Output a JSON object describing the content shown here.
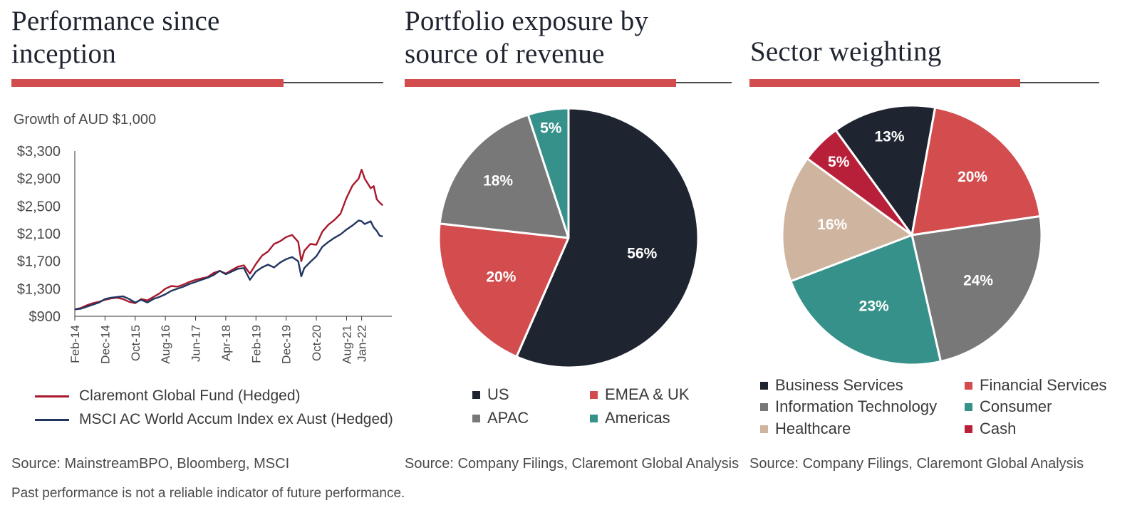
{
  "panels": {
    "performance": {
      "title_line1": "Performance since",
      "title_line2": "inception",
      "subtitle": "Growth of AUD $1,000",
      "source": "Source: MainstreamBPO, Bloomberg, MSCI"
    },
    "exposure": {
      "title_line1": "Portfolio exposure by",
      "title_line2": "source of revenue",
      "source": "Source: Company Filings, Claremont Global Analysis"
    },
    "sector": {
      "title": "Sector weighting",
      "source": "Source: Company Filings, Claremont Global Analysis"
    }
  },
  "disclaimer": "Past performance is not a reliable indicator of future performance.",
  "colors": {
    "accent_red": "#d34d4f",
    "fund_line": "#a8182c",
    "index_line": "#213561",
    "navy": "#1e2531",
    "grey": "#787878",
    "teal": "#36918a",
    "tan": "#cfb5a0",
    "crimson": "#b8203a"
  },
  "chart_data": [
    {
      "type": "line",
      "title": "Growth of AUD $1,000",
      "y_ticks": [
        "$3,300",
        "$2,900",
        "$2,500",
        "$2,100",
        "$1,700",
        "$1,300",
        "$900"
      ],
      "y_tick_values": [
        3300,
        2900,
        2500,
        2100,
        1700,
        1300,
        900
      ],
      "x_ticks": [
        "Feb-14",
        "Dec-14",
        "Oct-15",
        "Aug-16",
        "Jun-17",
        "Apr-18",
        "Feb-19",
        "Dec-19",
        "Oct-20",
        "Aug-21",
        "Jan-22"
      ],
      "x_tick_positions": [
        0,
        10,
        20,
        30,
        40,
        50,
        60,
        70,
        80,
        90,
        95
      ],
      "ylim": [
        900,
        3300
      ],
      "xlim": [
        0,
        105
      ],
      "grid": false,
      "legend_position": "bottom",
      "series": [
        {
          "name": "Claremont Global Fund (Hedged)",
          "color": "#a8182c",
          "x": [
            0,
            2,
            4,
            6,
            8,
            10,
            12,
            14,
            16,
            18,
            20,
            22,
            24,
            26,
            28,
            30,
            32,
            34,
            36,
            38,
            40,
            42,
            44,
            46,
            48,
            50,
            52,
            54,
            56,
            58,
            60,
            62,
            64,
            66,
            68,
            70,
            72,
            74,
            75,
            76,
            78,
            80,
            82,
            84,
            86,
            88,
            90,
            92,
            94,
            95,
            96,
            98,
            99,
            100,
            101,
            102
          ],
          "y": [
            1000,
            1020,
            1060,
            1090,
            1110,
            1140,
            1160,
            1170,
            1150,
            1110,
            1090,
            1150,
            1130,
            1180,
            1230,
            1300,
            1340,
            1330,
            1360,
            1400,
            1430,
            1450,
            1470,
            1530,
            1560,
            1520,
            1570,
            1620,
            1640,
            1520,
            1660,
            1780,
            1840,
            1950,
            1990,
            2050,
            2080,
            1980,
            1700,
            1850,
            1950,
            1940,
            2130,
            2230,
            2300,
            2390,
            2620,
            2800,
            2900,
            3030,
            2900,
            2760,
            2790,
            2600,
            2550,
            2510
          ]
        },
        {
          "name": "MSCI AC World Accum Index ex Aust (Hedged)",
          "color": "#213561",
          "x": [
            0,
            2,
            4,
            6,
            8,
            10,
            12,
            14,
            16,
            18,
            20,
            22,
            24,
            26,
            28,
            30,
            32,
            34,
            36,
            38,
            40,
            42,
            44,
            46,
            48,
            50,
            52,
            54,
            56,
            58,
            60,
            62,
            64,
            66,
            68,
            70,
            72,
            74,
            75,
            76,
            78,
            80,
            82,
            84,
            86,
            88,
            90,
            92,
            94,
            95,
            96,
            98,
            99,
            100,
            101,
            102
          ],
          "y": [
            1000,
            1010,
            1040,
            1070,
            1100,
            1150,
            1170,
            1180,
            1190,
            1150,
            1100,
            1140,
            1100,
            1150,
            1180,
            1220,
            1270,
            1300,
            1330,
            1370,
            1400,
            1430,
            1460,
            1500,
            1560,
            1510,
            1550,
            1590,
            1600,
            1430,
            1550,
            1610,
            1650,
            1610,
            1680,
            1730,
            1760,
            1700,
            1480,
            1600,
            1690,
            1770,
            1910,
            1980,
            2040,
            2090,
            2160,
            2220,
            2290,
            2280,
            2240,
            2280,
            2190,
            2140,
            2070,
            2060
          ]
        }
      ]
    },
    {
      "type": "pie",
      "title": "Portfolio exposure by source of revenue",
      "labels": [
        "US",
        "EMEA & UK",
        "APAC",
        "Americas"
      ],
      "values": [
        56,
        20,
        18,
        5
      ],
      "value_labels": [
        "56%",
        "20%",
        "18%",
        "5%"
      ],
      "colors": [
        "#1e2531",
        "#d34d4f",
        "#787878",
        "#36918a"
      ],
      "legend_position": "bottom"
    },
    {
      "type": "pie",
      "title": "Sector weighting",
      "labels": [
        "Business Services",
        "Financial Services",
        "Information Technology",
        "Consumer",
        "Healthcare",
        "Cash"
      ],
      "values": [
        13,
        20,
        24,
        23,
        16,
        5
      ],
      "value_labels": [
        "13%",
        "20%",
        "24%",
        "23%",
        "16%",
        "5%"
      ],
      "colors": [
        "#1e2531",
        "#d34d4f",
        "#787878",
        "#36918a",
        "#cfb5a0",
        "#b8203a"
      ],
      "legend_position": "bottom"
    }
  ]
}
